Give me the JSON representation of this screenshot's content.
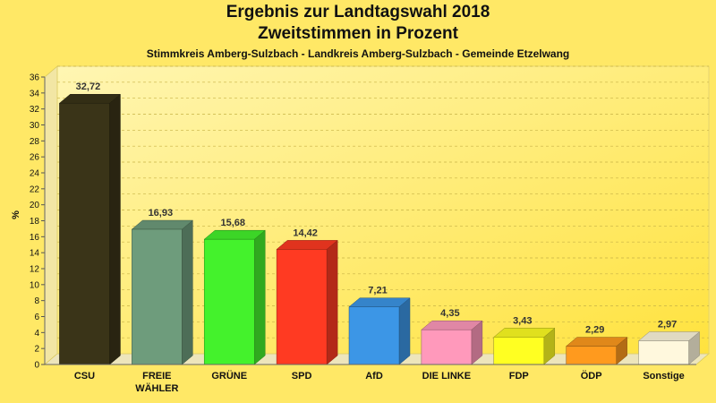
{
  "chart_data": {
    "type": "bar",
    "title": "Ergebnis zur Landtagswahl 2018",
    "subtitle": "Zweitstimmen in Prozent",
    "subtitle2": "Stimmkreis Amberg-Sulzbach - Landkreis Amberg-Sulzbach - Gemeinde Etzelwang",
    "ylabel": "%",
    "xlabel": "",
    "ylim": [
      0,
      36
    ],
    "yticks": [
      "0",
      "2",
      "4",
      "6",
      "8",
      "10",
      "12",
      "14",
      "16",
      "18",
      "20",
      "22",
      "24",
      "26",
      "28",
      "30",
      "32",
      "34",
      "36"
    ],
    "grid": true,
    "categories": [
      "CSU",
      "FREIE WÄHLER",
      "GRÜNE",
      "SPD",
      "AfD",
      "DIE LINKE",
      "FDP",
      "ÖDP",
      "Sonstige"
    ],
    "category_lines": [
      [
        "CSU"
      ],
      [
        "FREIE",
        "WÄHLER"
      ],
      [
        "GRÜNE"
      ],
      [
        "SPD"
      ],
      [
        "AfD"
      ],
      [
        "DIE LINKE"
      ],
      [
        "FDP"
      ],
      [
        "ÖDP"
      ],
      [
        "Sonstige"
      ]
    ],
    "values": [
      32.72,
      16.93,
      15.68,
      14.42,
      7.21,
      4.35,
      3.43,
      2.29,
      2.97
    ],
    "value_labels": [
      "32,72",
      "16,93",
      "15,68",
      "14,42",
      "7,21",
      "4,35",
      "3,43",
      "2,29",
      "2,97"
    ],
    "colors": [
      "#3a3418",
      "#6e9c7c",
      "#44f22c",
      "#ff3a22",
      "#3c96e6",
      "#ff99bb",
      "#ffff22",
      "#ff9a1e",
      "#fff8dd"
    ]
  }
}
